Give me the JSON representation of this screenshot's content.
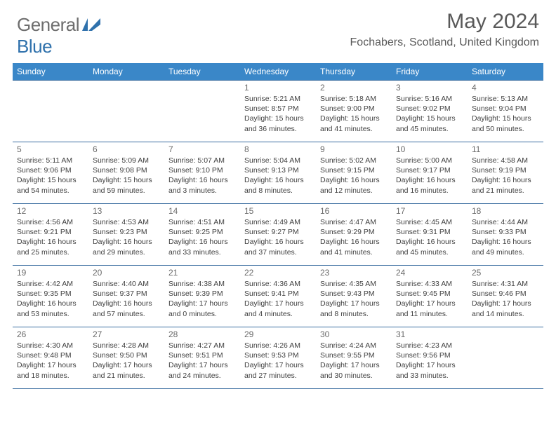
{
  "brand": {
    "part1": "General",
    "part2": "Blue"
  },
  "title": "May 2024",
  "location": "Fochabers, Scotland, United Kingdom",
  "colors": {
    "headerBg": "#3a87c8",
    "headerText": "#ffffff",
    "border": "#3a6da0",
    "bodyText": "#404040",
    "monthText": "#595959",
    "logoGray": "#6e6e6e",
    "logoBlue": "#2f71ac"
  },
  "weekdays": [
    "Sunday",
    "Monday",
    "Tuesday",
    "Wednesday",
    "Thursday",
    "Friday",
    "Saturday"
  ],
  "grid": [
    [
      null,
      null,
      null,
      {
        "n": "1",
        "sr": "Sunrise: 5:21 AM",
        "ss": "Sunset: 8:57 PM",
        "d1": "Daylight: 15 hours",
        "d2": "and 36 minutes."
      },
      {
        "n": "2",
        "sr": "Sunrise: 5:18 AM",
        "ss": "Sunset: 9:00 PM",
        "d1": "Daylight: 15 hours",
        "d2": "and 41 minutes."
      },
      {
        "n": "3",
        "sr": "Sunrise: 5:16 AM",
        "ss": "Sunset: 9:02 PM",
        "d1": "Daylight: 15 hours",
        "d2": "and 45 minutes."
      },
      {
        "n": "4",
        "sr": "Sunrise: 5:13 AM",
        "ss": "Sunset: 9:04 PM",
        "d1": "Daylight: 15 hours",
        "d2": "and 50 minutes."
      }
    ],
    [
      {
        "n": "5",
        "sr": "Sunrise: 5:11 AM",
        "ss": "Sunset: 9:06 PM",
        "d1": "Daylight: 15 hours",
        "d2": "and 54 minutes."
      },
      {
        "n": "6",
        "sr": "Sunrise: 5:09 AM",
        "ss": "Sunset: 9:08 PM",
        "d1": "Daylight: 15 hours",
        "d2": "and 59 minutes."
      },
      {
        "n": "7",
        "sr": "Sunrise: 5:07 AM",
        "ss": "Sunset: 9:10 PM",
        "d1": "Daylight: 16 hours",
        "d2": "and 3 minutes."
      },
      {
        "n": "8",
        "sr": "Sunrise: 5:04 AM",
        "ss": "Sunset: 9:13 PM",
        "d1": "Daylight: 16 hours",
        "d2": "and 8 minutes."
      },
      {
        "n": "9",
        "sr": "Sunrise: 5:02 AM",
        "ss": "Sunset: 9:15 PM",
        "d1": "Daylight: 16 hours",
        "d2": "and 12 minutes."
      },
      {
        "n": "10",
        "sr": "Sunrise: 5:00 AM",
        "ss": "Sunset: 9:17 PM",
        "d1": "Daylight: 16 hours",
        "d2": "and 16 minutes."
      },
      {
        "n": "11",
        "sr": "Sunrise: 4:58 AM",
        "ss": "Sunset: 9:19 PM",
        "d1": "Daylight: 16 hours",
        "d2": "and 21 minutes."
      }
    ],
    [
      {
        "n": "12",
        "sr": "Sunrise: 4:56 AM",
        "ss": "Sunset: 9:21 PM",
        "d1": "Daylight: 16 hours",
        "d2": "and 25 minutes."
      },
      {
        "n": "13",
        "sr": "Sunrise: 4:53 AM",
        "ss": "Sunset: 9:23 PM",
        "d1": "Daylight: 16 hours",
        "d2": "and 29 minutes."
      },
      {
        "n": "14",
        "sr": "Sunrise: 4:51 AM",
        "ss": "Sunset: 9:25 PM",
        "d1": "Daylight: 16 hours",
        "d2": "and 33 minutes."
      },
      {
        "n": "15",
        "sr": "Sunrise: 4:49 AM",
        "ss": "Sunset: 9:27 PM",
        "d1": "Daylight: 16 hours",
        "d2": "and 37 minutes."
      },
      {
        "n": "16",
        "sr": "Sunrise: 4:47 AM",
        "ss": "Sunset: 9:29 PM",
        "d1": "Daylight: 16 hours",
        "d2": "and 41 minutes."
      },
      {
        "n": "17",
        "sr": "Sunrise: 4:45 AM",
        "ss": "Sunset: 9:31 PM",
        "d1": "Daylight: 16 hours",
        "d2": "and 45 minutes."
      },
      {
        "n": "18",
        "sr": "Sunrise: 4:44 AM",
        "ss": "Sunset: 9:33 PM",
        "d1": "Daylight: 16 hours",
        "d2": "and 49 minutes."
      }
    ],
    [
      {
        "n": "19",
        "sr": "Sunrise: 4:42 AM",
        "ss": "Sunset: 9:35 PM",
        "d1": "Daylight: 16 hours",
        "d2": "and 53 minutes."
      },
      {
        "n": "20",
        "sr": "Sunrise: 4:40 AM",
        "ss": "Sunset: 9:37 PM",
        "d1": "Daylight: 16 hours",
        "d2": "and 57 minutes."
      },
      {
        "n": "21",
        "sr": "Sunrise: 4:38 AM",
        "ss": "Sunset: 9:39 PM",
        "d1": "Daylight: 17 hours",
        "d2": "and 0 minutes."
      },
      {
        "n": "22",
        "sr": "Sunrise: 4:36 AM",
        "ss": "Sunset: 9:41 PM",
        "d1": "Daylight: 17 hours",
        "d2": "and 4 minutes."
      },
      {
        "n": "23",
        "sr": "Sunrise: 4:35 AM",
        "ss": "Sunset: 9:43 PM",
        "d1": "Daylight: 17 hours",
        "d2": "and 8 minutes."
      },
      {
        "n": "24",
        "sr": "Sunrise: 4:33 AM",
        "ss": "Sunset: 9:45 PM",
        "d1": "Daylight: 17 hours",
        "d2": "and 11 minutes."
      },
      {
        "n": "25",
        "sr": "Sunrise: 4:31 AM",
        "ss": "Sunset: 9:46 PM",
        "d1": "Daylight: 17 hours",
        "d2": "and 14 minutes."
      }
    ],
    [
      {
        "n": "26",
        "sr": "Sunrise: 4:30 AM",
        "ss": "Sunset: 9:48 PM",
        "d1": "Daylight: 17 hours",
        "d2": "and 18 minutes."
      },
      {
        "n": "27",
        "sr": "Sunrise: 4:28 AM",
        "ss": "Sunset: 9:50 PM",
        "d1": "Daylight: 17 hours",
        "d2": "and 21 minutes."
      },
      {
        "n": "28",
        "sr": "Sunrise: 4:27 AM",
        "ss": "Sunset: 9:51 PM",
        "d1": "Daylight: 17 hours",
        "d2": "and 24 minutes."
      },
      {
        "n": "29",
        "sr": "Sunrise: 4:26 AM",
        "ss": "Sunset: 9:53 PM",
        "d1": "Daylight: 17 hours",
        "d2": "and 27 minutes."
      },
      {
        "n": "30",
        "sr": "Sunrise: 4:24 AM",
        "ss": "Sunset: 9:55 PM",
        "d1": "Daylight: 17 hours",
        "d2": "and 30 minutes."
      },
      {
        "n": "31",
        "sr": "Sunrise: 4:23 AM",
        "ss": "Sunset: 9:56 PM",
        "d1": "Daylight: 17 hours",
        "d2": "and 33 minutes."
      },
      null
    ]
  ]
}
